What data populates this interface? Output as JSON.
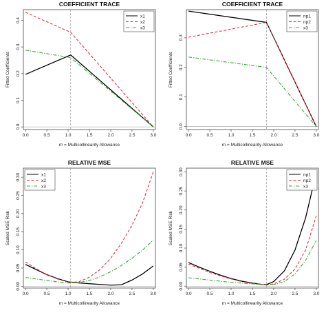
{
  "colors": {
    "s1": "#000000",
    "s2": "#dd3344",
    "s3": "#33aa33",
    "guide": "#999999",
    "frame": "#444444"
  },
  "chart_data": [
    {
      "type": "line",
      "title": "COEFFICIENT TRACE",
      "xlabel": "m = Multicollinearity Allowance",
      "ylabel": "Fitted Coefficients",
      "xlim": [
        -0.05,
        3.05
      ],
      "ylim": [
        -0.01,
        0.44
      ],
      "xticks": [
        "0.0",
        "0.5",
        "1.0",
        "1.5",
        "2.0",
        "2.5",
        "3.0"
      ],
      "yticks": [
        "0.0",
        "0.1",
        "0.2",
        "0.3",
        "0.4"
      ],
      "vline": 1.06,
      "hline": 0,
      "legend_position": "top-right",
      "series": [
        {
          "name": "x1",
          "x": [
            0,
            1.06,
            3
          ],
          "y": [
            0.197,
            0.27,
            0
          ]
        },
        {
          "name": "x2",
          "x": [
            0,
            1.06,
            3
          ],
          "y": [
            0.43,
            0.355,
            0
          ]
        },
        {
          "name": "x3",
          "x": [
            0,
            1.06,
            3
          ],
          "y": [
            0.288,
            0.26,
            0
          ]
        }
      ]
    },
    {
      "type": "line",
      "title": "COEFFICIENT TRACE",
      "xlabel": "m = Multicollinearity Allowance",
      "ylabel": "Fitted Coefficients",
      "xlim": [
        -0.05,
        3.05
      ],
      "ylim": [
        -0.01,
        0.395
      ],
      "xticks": [
        "0.0",
        "0.5",
        "1.0",
        "1.5",
        "2.0",
        "2.5",
        "3.0"
      ],
      "yticks": [
        "0.0",
        "0.1",
        "0.2",
        "0.3"
      ],
      "vline": 1.83,
      "hline": 0,
      "legend_position": "top-right",
      "series": [
        {
          "name": "np1",
          "x": [
            0,
            1.83,
            3
          ],
          "y": [
            0.39,
            0.352,
            0
          ]
        },
        {
          "name": "np2",
          "x": [
            0,
            1.83,
            3
          ],
          "y": [
            0.302,
            0.352,
            0
          ]
        },
        {
          "name": "x3",
          "x": [
            0,
            1.83,
            3
          ],
          "y": [
            0.235,
            0.2,
            0
          ]
        }
      ]
    },
    {
      "type": "line",
      "title": "RELATIVE MSE",
      "xlabel": "m = Multicollinearity Allowance",
      "ylabel": "Scaled MSE Risk",
      "xlim": [
        -0.05,
        3.05
      ],
      "ylim": [
        -0.005,
        0.325
      ],
      "xticks": [
        "0.0",
        "0.5",
        "1.0",
        "1.5",
        "2.0",
        "2.5",
        "3.0"
      ],
      "yticks": [
        "0.00",
        "0.05",
        "0.10",
        "0.15",
        "0.20",
        "0.25",
        "0.30"
      ],
      "vline": 1.06,
      "hline": 0,
      "legend_position": "top-left",
      "series": [
        {
          "name": "x1",
          "x": [
            0,
            0.25,
            0.5,
            0.75,
            1.0,
            1.25,
            1.5,
            1.75,
            2.0,
            2.25,
            2.5,
            2.75,
            3.0
          ],
          "y": [
            0.06,
            0.046,
            0.032,
            0.021,
            0.012,
            0.009,
            0.007,
            0.005,
            0.003,
            0.004,
            0.017,
            0.034,
            0.056
          ]
        },
        {
          "name": "x2",
          "x": [
            0,
            0.25,
            0.5,
            0.75,
            1.0,
            1.25,
            1.5,
            1.75,
            2.0,
            2.25,
            2.5,
            2.75,
            3.0
          ],
          "y": [
            0.067,
            0.048,
            0.032,
            0.02,
            0.011,
            0.012,
            0.025,
            0.046,
            0.077,
            0.118,
            0.168,
            0.23,
            0.315
          ]
        },
        {
          "name": "x3",
          "x": [
            0,
            0.25,
            0.5,
            0.75,
            1.0,
            1.25,
            1.5,
            1.75,
            2.0,
            2.25,
            2.5,
            2.75,
            3.0
          ],
          "y": [
            0.024,
            0.02,
            0.016,
            0.012,
            0.009,
            0.01,
            0.016,
            0.026,
            0.04,
            0.057,
            0.077,
            0.1,
            0.127
          ]
        }
      ]
    },
    {
      "type": "line",
      "title": "RELATIVE MSE",
      "xlabel": "m = Multicollinearity Allowance",
      "ylabel": "Scaled MSE Risk",
      "xlim": [
        -0.05,
        3.05
      ],
      "ylim": [
        -0.005,
        0.31
      ],
      "xticks": [
        "0.0",
        "0.5",
        "1.0",
        "1.5",
        "2.0",
        "2.5",
        "3.0"
      ],
      "yticks": [
        "0.00",
        "0.05",
        "0.10",
        "0.15",
        "0.20",
        "0.25",
        "0.30"
      ],
      "vline": 1.83,
      "hline": 0,
      "legend_position": "top-right",
      "series": [
        {
          "name": "np1",
          "x": [
            0,
            0.25,
            0.5,
            0.75,
            1.0,
            1.25,
            1.5,
            1.75,
            1.83,
            2.0,
            2.25,
            2.5,
            2.75,
            3.0
          ],
          "y": [
            0.062,
            0.05,
            0.039,
            0.029,
            0.02,
            0.013,
            0.008,
            0.004,
            0.004,
            0.012,
            0.04,
            0.095,
            0.18,
            0.298
          ]
        },
        {
          "name": "np2",
          "x": [
            0,
            0.25,
            0.5,
            0.75,
            1.0,
            1.25,
            1.5,
            1.75,
            1.83,
            2.0,
            2.25,
            2.5,
            2.75,
            3.0
          ],
          "y": [
            0.058,
            0.047,
            0.036,
            0.027,
            0.019,
            0.012,
            0.007,
            0.004,
            0.003,
            0.006,
            0.018,
            0.045,
            0.095,
            0.185
          ]
        },
        {
          "name": "x3",
          "x": [
            0,
            0.25,
            0.5,
            0.75,
            1.0,
            1.25,
            1.5,
            1.75,
            1.83,
            2.0,
            2.25,
            2.5,
            2.75,
            3.0
          ],
          "y": [
            0.022,
            0.019,
            0.016,
            0.013,
            0.01,
            0.008,
            0.006,
            0.004,
            0.003,
            0.004,
            0.012,
            0.032,
            0.068,
            0.12
          ]
        }
      ]
    }
  ]
}
